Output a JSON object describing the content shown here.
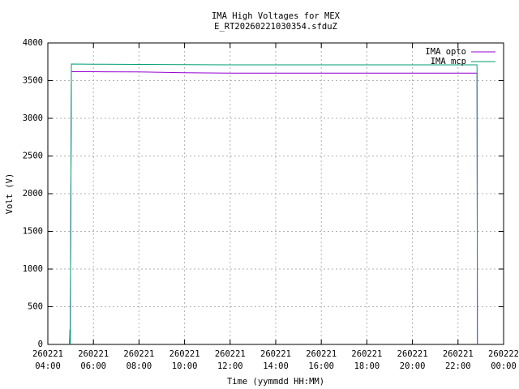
{
  "chart_data": {
    "type": "line",
    "title": "IMA High Voltages for MEX",
    "subtitle": "E_RT20260221030354.sfduZ",
    "x_label": "Time (yymmdd HH:MM)",
    "y_label": "Volt (V)",
    "x": [
      "260221 04:57",
      "260221 04:58",
      "260221 04:59",
      "260221 05:02",
      "260221 06:00",
      "260221 08:00",
      "260221 10:00",
      "260221 12:00",
      "260221 16:00",
      "260221 20:00",
      "260221 22:50",
      "260221 22:51"
    ],
    "series": [
      {
        "name": "IMA opto",
        "color": "#9400d3",
        "values": [
          0,
          150,
          0,
          3620,
          3618,
          3615,
          3605,
          3600,
          3600,
          3600,
          3600,
          0
        ]
      },
      {
        "name": "IMA mcp",
        "color": "#009e73",
        "values": [
          0,
          200,
          0,
          3720,
          3718,
          3715,
          3712,
          3710,
          3710,
          3710,
          3710,
          0
        ]
      }
    ],
    "xlim": [
      "260221 04:00",
      "260222 00:00"
    ],
    "xticks": [
      "260221 04:00",
      "260221 06:00",
      "260221 08:00",
      "260221 10:00",
      "260221 12:00",
      "260221 14:00",
      "260221 16:00",
      "260221 18:00",
      "260221 20:00",
      "260221 22:00",
      "260222 00:00"
    ],
    "ylim": [
      0,
      4000
    ],
    "yticks": [
      0,
      500,
      1000,
      1500,
      2000,
      2500,
      3000,
      3500,
      4000
    ],
    "grid": true,
    "legend_position": "top-right"
  }
}
